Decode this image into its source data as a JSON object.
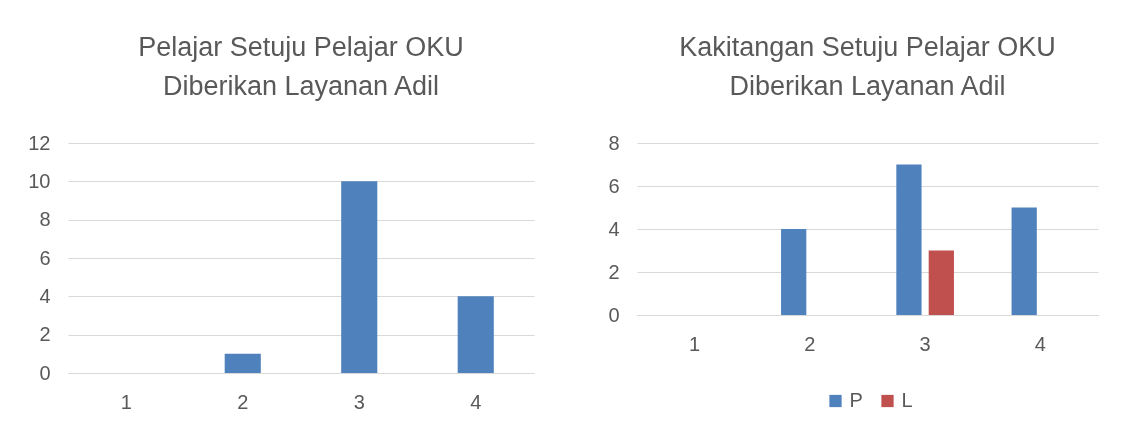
{
  "chart_data": [
    {
      "type": "bar",
      "title": "Pelajar Setuju Pelajar OKU Diberikan Layanan Adil",
      "categories": [
        "1",
        "2",
        "3",
        "4"
      ],
      "series": [
        {
          "color": "#4f81bd",
          "values": [
            0,
            1,
            10,
            4
          ]
        }
      ],
      "ylim": [
        0,
        12
      ],
      "yticks": [
        0,
        2,
        4,
        6,
        8,
        10,
        12
      ],
      "grid": "y"
    },
    {
      "type": "bar",
      "title": "Kakitangan Setuju Pelajar OKU Diberikan Layanan Adil",
      "categories": [
        "1",
        "2",
        "3",
        "4"
      ],
      "series": [
        {
          "name": "P",
          "color": "#4f81bd",
          "values": [
            0,
            4,
            7,
            5
          ]
        },
        {
          "name": "L",
          "color": "#c0504d",
          "values": [
            0,
            0,
            3,
            0
          ]
        }
      ],
      "ylim": [
        0,
        8
      ],
      "yticks": [
        0,
        2,
        4,
        6,
        8
      ],
      "grid": "y",
      "legend": "bottom"
    }
  ]
}
